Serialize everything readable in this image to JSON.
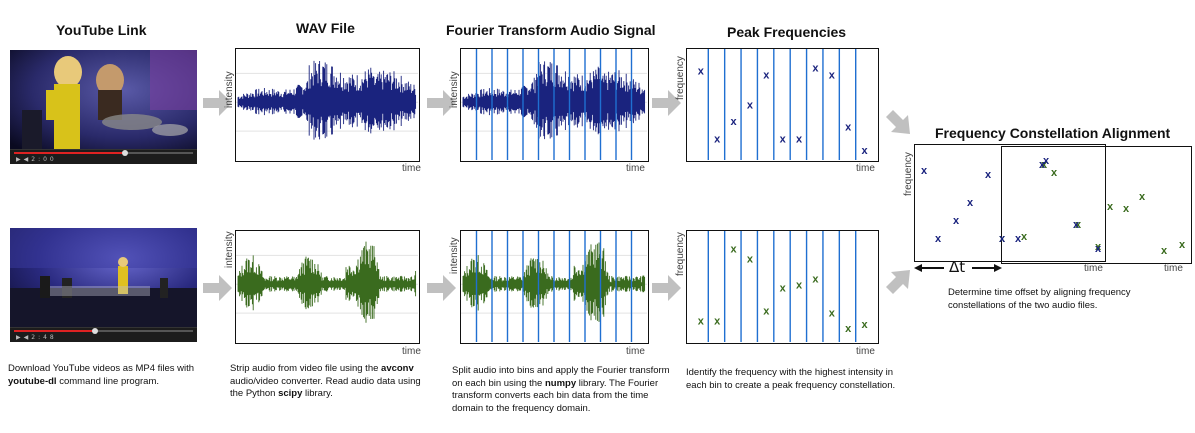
{
  "titles": {
    "youtube": "YouTube Link",
    "wav": "WAV File",
    "fourier": "Fourier Transform Audio Signal",
    "peaks": "Peak Frequencies",
    "alignment": "Frequency Constellation Alignment"
  },
  "axis": {
    "intensity": "intensity",
    "time": "time",
    "frequency": "frequency",
    "delta": "Δt"
  },
  "peak_marker": "x",
  "colors": {
    "blue": "#1a237e",
    "green": "#3a6b1e",
    "line": "#1f6fd1",
    "arrow": "#c0c0c0"
  },
  "descriptions": {
    "youtube": {
      "t1": "Download YouTube videos as MP4 files with ",
      "b1": "youtube-dl",
      "t2": " command line program."
    },
    "wav": {
      "t1": "Strip audio from video file using the ",
      "b1": "avconv",
      "t2": " audio/video converter. Read audio data using the Python ",
      "b2": "scipy",
      "t3": " library."
    },
    "fourier": {
      "t1": "Split audio into bins and apply the Fourier transform on each bin using the ",
      "b1": "numpy",
      "t2": " library. The Fourier transform converts each bin data from the time domain to the frequency domain."
    },
    "peaks": {
      "t1": "Identify the frequency with the highest intensity in each bin to create a peak frequency constellation."
    },
    "alignment": {
      "t1": "Determine time offset by aligning frequency constellations of the two audio files."
    }
  },
  "video_controls": {
    "top": {
      "time": "2:00",
      "progress": 0.62
    },
    "bottom": {
      "time": "2:48",
      "progress": 0.45
    }
  }
}
